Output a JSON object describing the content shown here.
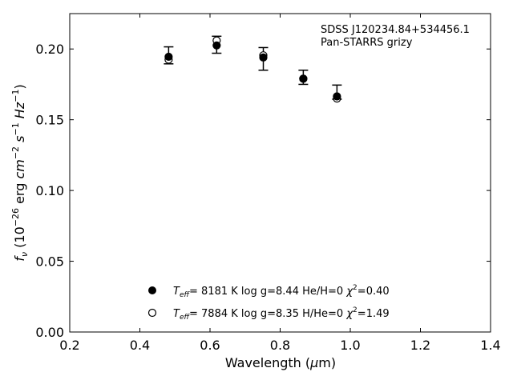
{
  "chart_data": {
    "type": "scatter",
    "xlabel": "Wavelength (μm)",
    "ylabel": "f_ν (10^-26 erg cm^-2 s^-1 Hz^-1)",
    "xlim": [
      0.2,
      1.4
    ],
    "ylim": [
      0.0,
      0.225
    ],
    "xticks": [
      0.2,
      0.4,
      0.6,
      0.8,
      1.0,
      1.2,
      1.4
    ],
    "xtick_labels": [
      "0.2",
      "0.4",
      "0.6",
      "0.8",
      "1.0",
      "1.2",
      "1.4"
    ],
    "yticks": [
      0.0,
      0.05,
      0.1,
      0.15,
      0.2
    ],
    "ytick_labels": [
      "0.00",
      "0.05",
      "0.10",
      "0.15",
      "0.20"
    ],
    "grid": false,
    "annotation": {
      "line1": "SDSS J120234.84+534456.1",
      "line2": "Pan-STARRS grizy",
      "placement": "top-right"
    },
    "observed": {
      "x": [
        0.482,
        0.619,
        0.752,
        0.866,
        0.962
      ],
      "y": [
        0.1955,
        0.203,
        0.193,
        0.18,
        0.1695
      ],
      "err": [
        0.006,
        0.006,
        0.008,
        0.005,
        0.005
      ]
    },
    "series": [
      {
        "name": "Teff= 8181 K log g=8.44 He/H=0 χ2=0.40",
        "marker": "filled-circle",
        "x": [
          0.482,
          0.619,
          0.752,
          0.866,
          0.962
        ],
        "y": [
          0.1945,
          0.2025,
          0.194,
          0.179,
          0.1665
        ]
      },
      {
        "name": "Teff= 7884 K log g=8.35 H/He=0 χ2=1.49",
        "marker": "open-circle",
        "x": [
          0.482,
          0.619,
          0.752,
          0.866,
          0.962
        ],
        "y": [
          0.1925,
          0.206,
          0.1955,
          0.179,
          0.165
        ]
      }
    ],
    "legend": {
      "placement": "lower-center",
      "entries": [
        {
          "teff": "8181",
          "logg": "8.44",
          "comp": "He/H=0",
          "chi2": "0.40"
        },
        {
          "teff": "7884",
          "logg": "8.35",
          "comp": "H/He=0",
          "chi2": "1.49"
        }
      ]
    }
  }
}
